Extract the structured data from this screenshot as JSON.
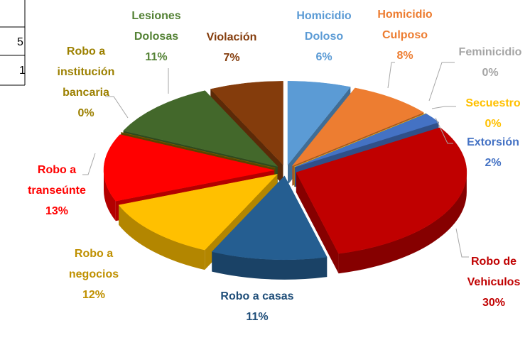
{
  "table": {
    "cells": [
      "5",
      "1"
    ]
  },
  "chart_data": {
    "type": "pie3d",
    "categories": [
      "Homicidio Doloso",
      "Homicidio Culposo",
      "Feminicidio",
      "Secuestro",
      "Extorsión",
      "Robo de Vehiculos",
      "Robo a casas",
      "Robo a negocios",
      "Robo a transeúnte",
      "Robo a institución bancaria",
      "Lesiones Dolosas",
      "Violación"
    ],
    "values": [
      6,
      8,
      0,
      0,
      2,
      30,
      11,
      12,
      13,
      0,
      11,
      7
    ],
    "value_labels": [
      "6%",
      "8%",
      "0%",
      "0%",
      "2%",
      "30%",
      "11%",
      "12%",
      "13%",
      "0%",
      "11%",
      "7%"
    ],
    "colors": [
      "#5b9bd5",
      "#ed7d31",
      "#a5a5a5",
      "#ffc000",
      "#4472c4",
      "#c00000",
      "#255e91",
      "#ffc000",
      "#ff0000",
      "#7f6000",
      "#43682b",
      "#843c0c"
    ],
    "label_colors": [
      "#5b9bd5",
      "#ed7d31",
      "#a5a5a5",
      "#ffc000",
      "#4472c4",
      "#c00000",
      "#1f4e79",
      "#bf9000",
      "#ff0000",
      "#9c8000",
      "#548235",
      "#843c0c"
    ]
  }
}
